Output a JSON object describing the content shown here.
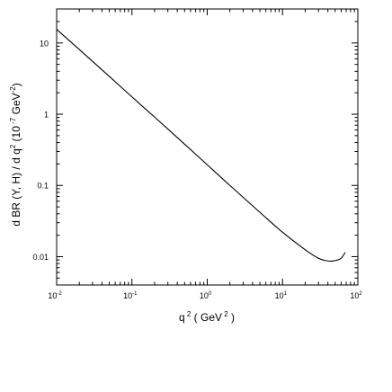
{
  "chart_data": {
    "type": "line",
    "title": "",
    "xlabel": {
      "parts": [
        {
          "t": "q",
          "sup": false
        },
        {
          "t": " 2",
          "sup": true
        },
        {
          "t": "  ( GeV",
          "sup": false
        },
        {
          "t": " 2",
          "sup": true
        },
        {
          "t": " )",
          "sup": false
        }
      ]
    },
    "ylabel": {
      "parts": [
        {
          "t": "d BR (Υ, H) / d q",
          "sup": false
        },
        {
          "t": "2",
          "sup": true
        },
        {
          "t": "  (10",
          "sup": false
        },
        {
          "t": " -7",
          "sup": true
        },
        {
          "t": " GeV",
          "sup": false
        },
        {
          "t": "-2",
          "sup": true
        },
        {
          "t": ")",
          "sup": false
        }
      ]
    },
    "x_scale": "log",
    "y_scale": "log",
    "xlim": [
      0.01,
      100
    ],
    "ylim": [
      0.004,
      30
    ],
    "x_ticks": [
      {
        "value": 0.01,
        "base": "10",
        "exp": "-2"
      },
      {
        "value": 0.1,
        "base": "10",
        "exp": "-1"
      },
      {
        "value": 1,
        "base": "10",
        "exp": "0"
      },
      {
        "value": 10,
        "base": "10",
        "exp": "1"
      },
      {
        "value": 100,
        "base": "10",
        "exp": "2"
      }
    ],
    "y_ticks": [
      {
        "value": 0.01,
        "label": "0.01"
      },
      {
        "value": 0.1,
        "label": "0.1"
      },
      {
        "value": 1,
        "label": "1"
      },
      {
        "value": 10,
        "label": "10"
      }
    ],
    "grid": false,
    "series": [
      {
        "color": "#000000",
        "x": [
          0.01,
          0.02,
          0.05,
          0.1,
          0.2,
          0.5,
          1,
          2,
          5,
          10,
          20,
          30,
          40,
          50,
          60,
          68
        ],
        "y": [
          15.5,
          8.1,
          3.4,
          1.75,
          0.91,
          0.38,
          0.195,
          0.1,
          0.042,
          0.022,
          0.0125,
          0.0095,
          0.0087,
          0.0088,
          0.0095,
          0.0115
        ]
      }
    ]
  }
}
